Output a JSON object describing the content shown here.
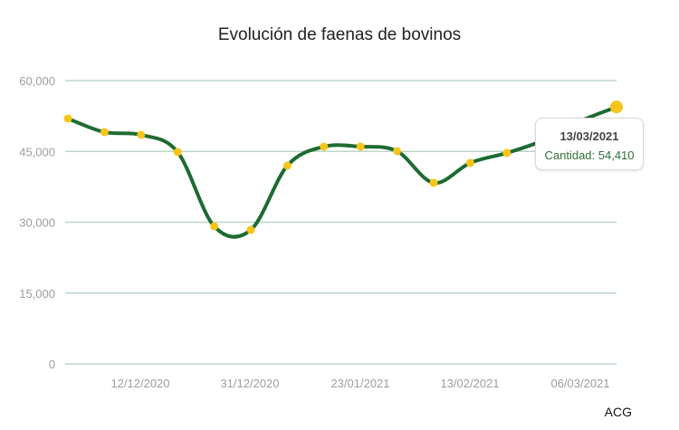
{
  "chart_data": {
    "type": "line",
    "title": "Evolución de faenas de bovinos",
    "xlabel": "",
    "ylabel": "",
    "ylim": [
      0,
      60000
    ],
    "y_ticks": [
      "0",
      "15,000",
      "30,000",
      "45,000",
      "60,000"
    ],
    "x_tick_labels": [
      "12/12/2020",
      "31/12/2020",
      "23/01/2021",
      "13/02/2021",
      "06/03/2021"
    ],
    "grid": true,
    "legend": "none",
    "series": [
      {
        "name": "Cantidad",
        "color": "#1e6b32",
        "marker_color": "#f5c518",
        "values": [
          51950,
          49080,
          48500,
          44860,
          29140,
          28370,
          41980,
          46010,
          46010,
          45050,
          38340,
          42560,
          44670,
          47350,
          51380,
          54410
        ]
      }
    ],
    "last_point": {
      "date": "13/03/2021",
      "value": 54410
    }
  },
  "title": "Evolución de faenas de bovinos",
  "tooltip": {
    "date": "13/03/2021",
    "value_text": "Cantidad: 54,410"
  },
  "axis": {
    "y": [
      "0",
      "15,000",
      "30,000",
      "45,000",
      "60,000"
    ],
    "x": [
      "12/12/2020",
      "31/12/2020",
      "23/01/2021",
      "13/02/2021",
      "06/03/2021"
    ]
  },
  "credit": "ACG",
  "colors": {
    "line": "#1e6b32",
    "marker": "#f5c518",
    "grid": "#bfd6c8",
    "axis_text": "#9e9e9e"
  }
}
